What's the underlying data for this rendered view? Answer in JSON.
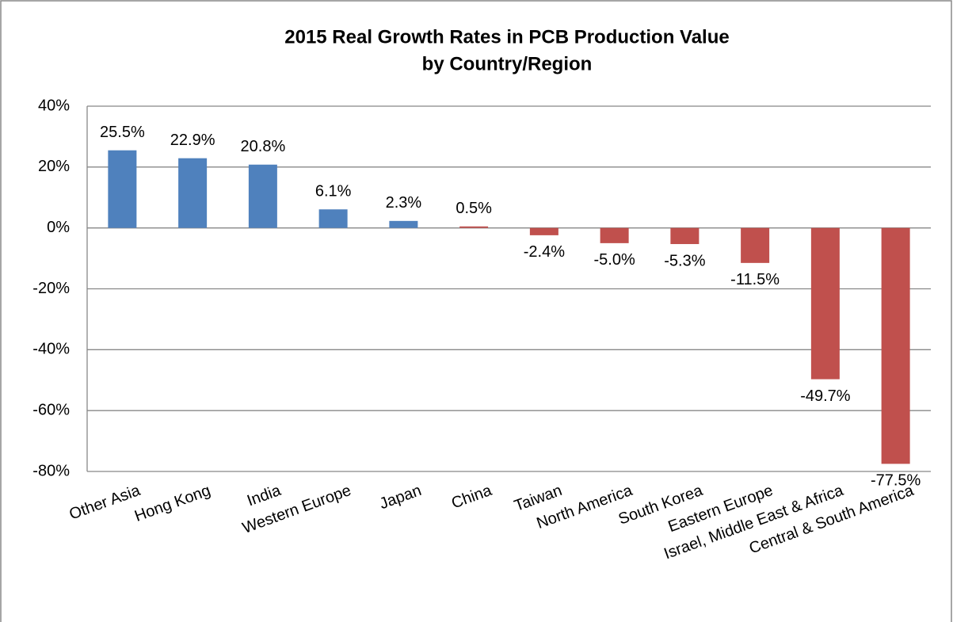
{
  "chart_data": {
    "type": "bar",
    "title": [
      "2015 Real Growth Rates in PCB Production Value",
      "by Country/Region"
    ],
    "categories": [
      "Other Asia",
      "Hong Kong",
      "India",
      "Western Europe",
      "Japan",
      "China",
      "Taiwan",
      "North America",
      "South Korea",
      "Eastern Europe",
      "Israel, Middle East & Africa",
      "Central & South America"
    ],
    "values": [
      25.5,
      22.9,
      20.8,
      6.1,
      2.3,
      0.5,
      -2.4,
      -5.0,
      -5.3,
      -11.5,
      -49.7,
      -77.5
    ],
    "value_labels": [
      "25.5%",
      "22.9%",
      "20.8%",
      "6.1%",
      "2.3%",
      "0.5%",
      "-2.4%",
      "-5.0%",
      "-5.3%",
      "-11.5%",
      "-49.7%",
      "-77.5%"
    ],
    "colors": [
      "#4f81bd",
      "#4f81bd",
      "#4f81bd",
      "#4f81bd",
      "#4f81bd",
      "#c0504d",
      "#c0504d",
      "#c0504d",
      "#c0504d",
      "#c0504d",
      "#c0504d",
      "#c0504d"
    ],
    "ylim": [
      -80,
      40
    ],
    "yticks": [
      {
        "value": -80,
        "label": "-80%"
      },
      {
        "value": -60,
        "label": "-60%"
      },
      {
        "value": -40,
        "label": "-40%"
      },
      {
        "value": -20,
        "label": "-20%"
      },
      {
        "value": 0,
        "label": "0%"
      },
      {
        "value": 20,
        "label": "20%"
      },
      {
        "value": 40,
        "label": "40%"
      }
    ],
    "grid": true
  }
}
